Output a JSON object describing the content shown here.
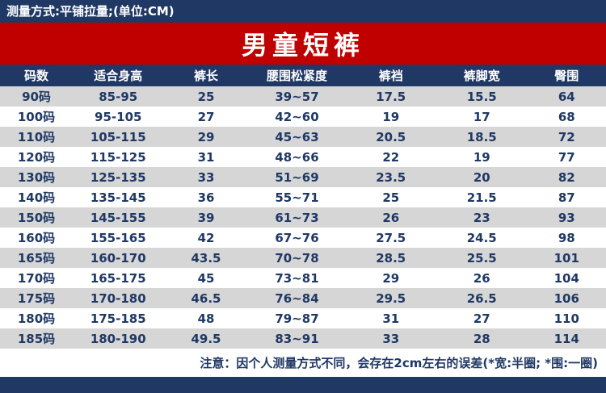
{
  "header": {
    "measure_method": "测量方式:平铺拉量;(单位:CM)",
    "title": "男童短裤"
  },
  "footer": {
    "note": "注意：因个人测量方式不同，会存在2cm左右的误差(*宽:半圈; *围:一圈)"
  },
  "colors": {
    "navy": "#1F3864",
    "red": "#C00000",
    "row_gray": "#D6D6D6",
    "row_white": "#FFFFFF"
  },
  "chart_data": {
    "type": "table",
    "title": "男童短裤",
    "unit": "CM",
    "columns": [
      "码数",
      "适合身高",
      "裤长",
      "腰围松紧度",
      "裤裆",
      "裤脚宽",
      "臀围"
    ],
    "rows": [
      [
        "90码",
        "85-95",
        "25",
        "39~57",
        "17.5",
        "15.5",
        "64"
      ],
      [
        "100码",
        "95-105",
        "27",
        "42~60",
        "19",
        "17",
        "68"
      ],
      [
        "110码",
        "105-115",
        "29",
        "45~63",
        "20.5",
        "18.5",
        "72"
      ],
      [
        "120码",
        "115-125",
        "31",
        "48~66",
        "22",
        "19",
        "77"
      ],
      [
        "130码",
        "125-135",
        "33",
        "51~69",
        "23.5",
        "20",
        "82"
      ],
      [
        "140码",
        "135-145",
        "36",
        "55~71",
        "25",
        "21.5",
        "87"
      ],
      [
        "150码",
        "145-155",
        "39",
        "61~73",
        "26",
        "23",
        "93"
      ],
      [
        "160码",
        "155-165",
        "42",
        "67~76",
        "27.5",
        "24.5",
        "98"
      ],
      [
        "165码",
        "160-170",
        "43.5",
        "70~78",
        "28.5",
        "25.5",
        "101"
      ],
      [
        "170码",
        "165-175",
        "45",
        "73~81",
        "29",
        "26",
        "104"
      ],
      [
        "175码",
        "170-180",
        "46.5",
        "76~84",
        "29.5",
        "26.5",
        "106"
      ],
      [
        "180码",
        "175-185",
        "48",
        "79~87",
        "31",
        "27",
        "110"
      ],
      [
        "185码",
        "180-190",
        "49.5",
        "83~91",
        "33",
        "28",
        "114"
      ]
    ]
  }
}
